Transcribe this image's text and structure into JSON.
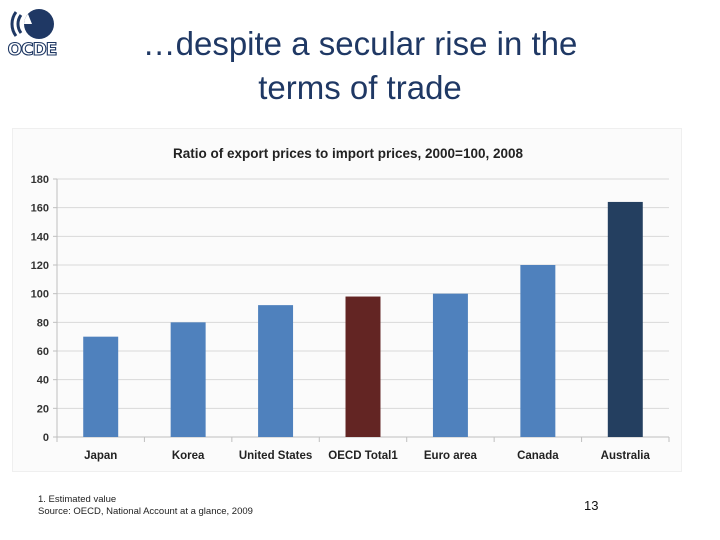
{
  "logo": {
    "text": "OCDE",
    "color": "#1f3864"
  },
  "slide": {
    "title_line1": "…despite a secular rise in the",
    "title_line2": "terms of trade",
    "footnote_line1": "1. Estimated value",
    "footnote_line2": "Source: OECD, National Account at a glance, 2009",
    "page_number": "13"
  },
  "chart_data": {
    "type": "bar",
    "title": "Ratio of export prices to import prices, 2000=100, 2008",
    "categories": [
      "Japan",
      "Korea",
      "United States",
      "OECD Total1",
      "Euro area",
      "Canada",
      "Australia"
    ],
    "values": [
      70,
      80,
      92,
      98,
      100,
      120,
      164
    ],
    "bar_colors": [
      "#4f81bd",
      "#4f81bd",
      "#4f81bd",
      "#632523",
      "#4f81bd",
      "#4f81bd",
      "#243f60"
    ],
    "ylim": [
      0,
      180
    ],
    "yticks": [
      0,
      20,
      40,
      60,
      80,
      100,
      120,
      140,
      160,
      180
    ],
    "grid": true,
    "xlabel": "",
    "ylabel": ""
  }
}
